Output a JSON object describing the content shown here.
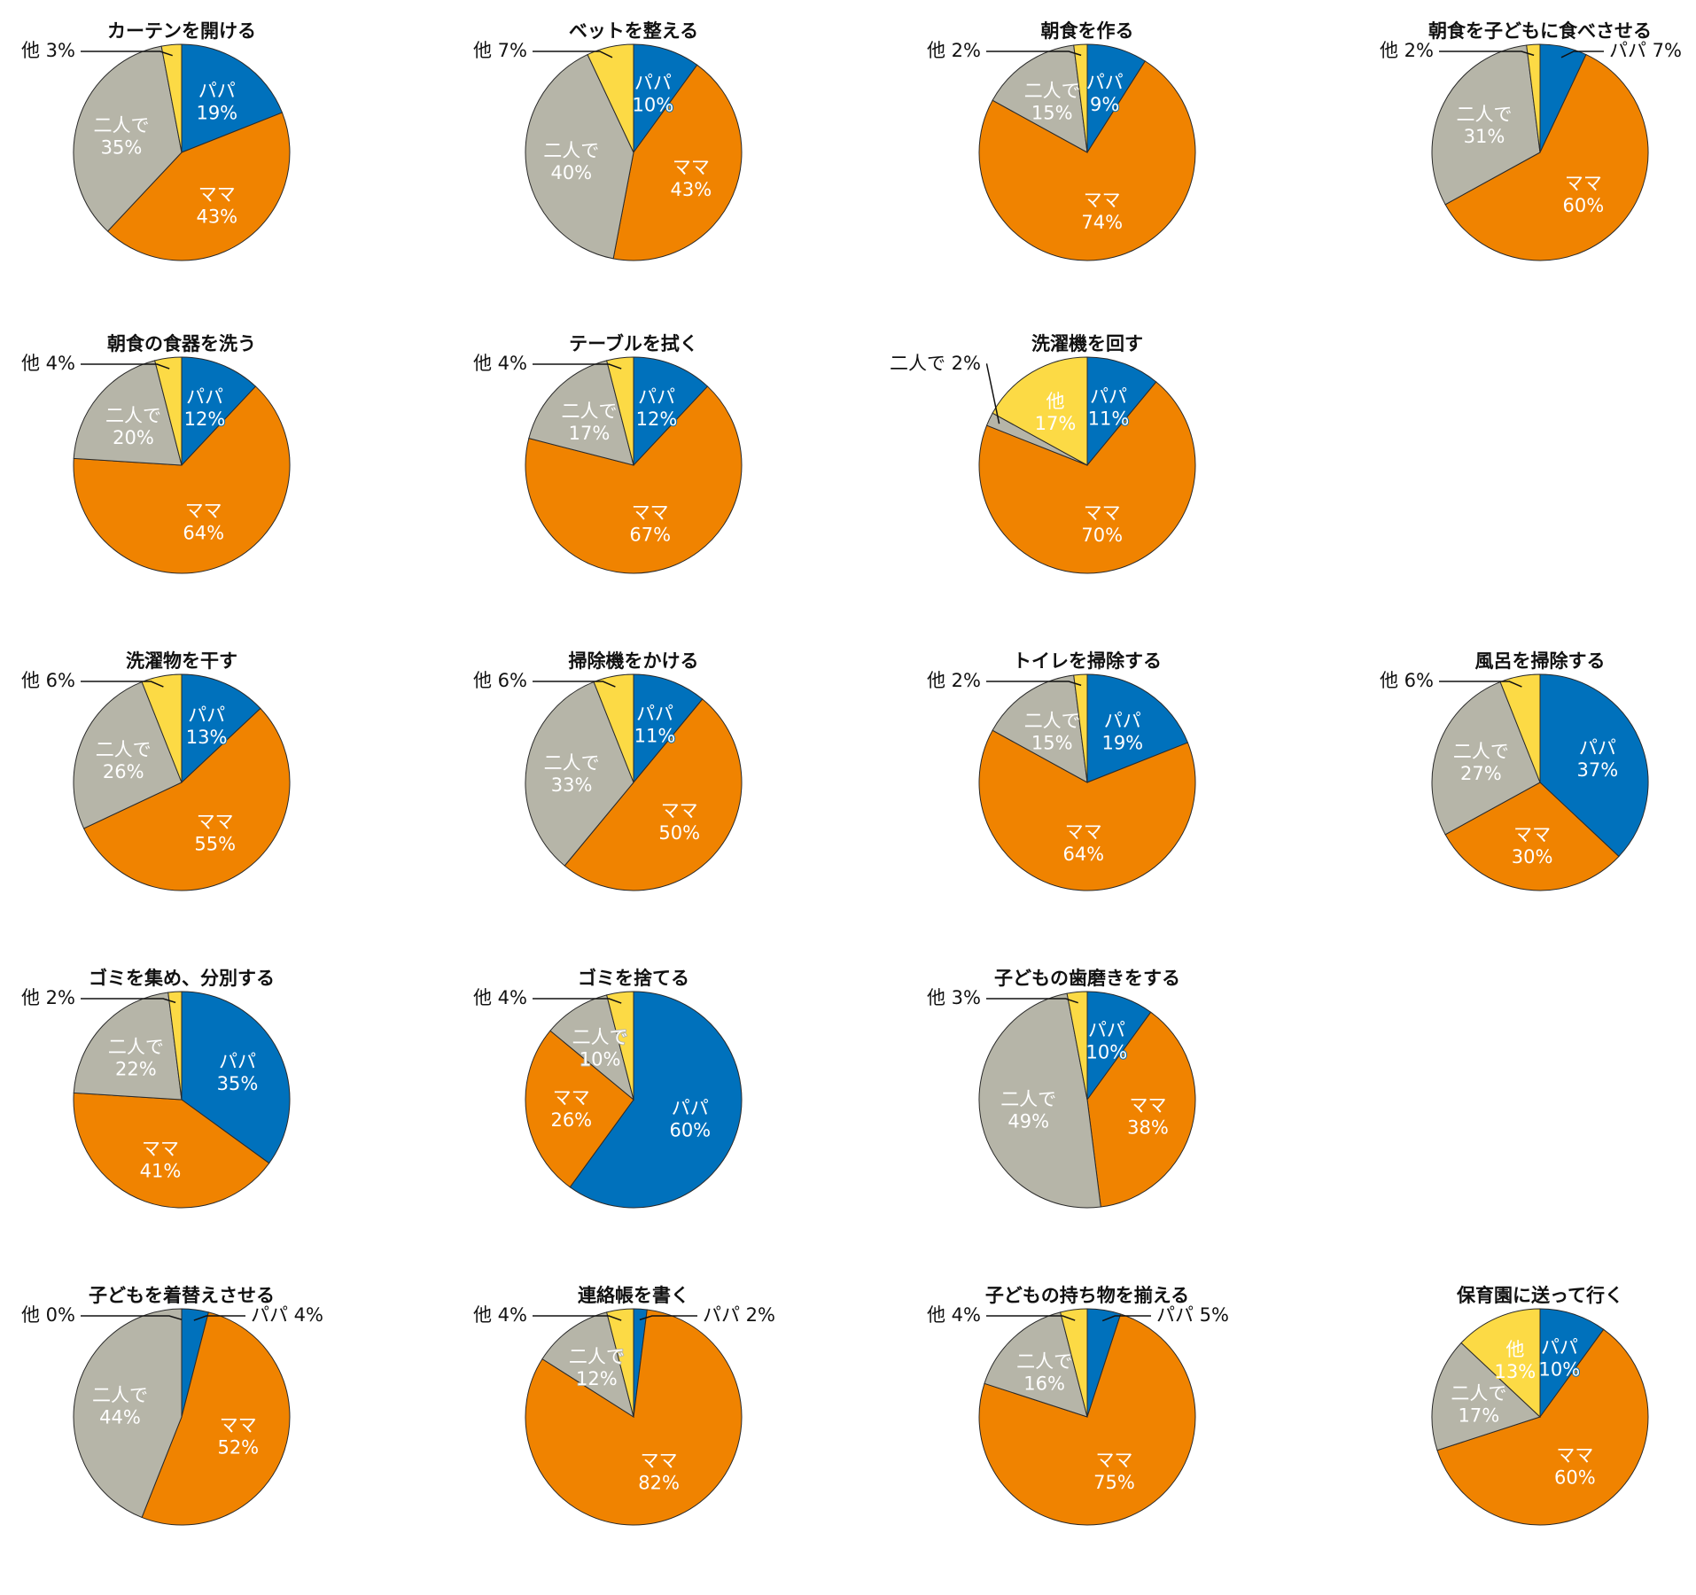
{
  "colors": {
    "papa": "#0071bc",
    "mama": "#f08300",
    "futari": "#b6b5a8",
    "other": "#fcda45"
  },
  "chart_data": [
    {
      "type": "pie",
      "title": "カーテンを開ける",
      "slices": [
        {
          "label": "パパ",
          "value": 19
        },
        {
          "label": "ママ",
          "value": 43
        },
        {
          "label": "二人で",
          "value": 35
        },
        {
          "label": "他",
          "value": 3
        }
      ]
    },
    {
      "type": "pie",
      "title": "ベットを整える",
      "slices": [
        {
          "label": "パパ",
          "value": 10
        },
        {
          "label": "ママ",
          "value": 43
        },
        {
          "label": "二人で",
          "value": 40
        },
        {
          "label": "他",
          "value": 7
        }
      ]
    },
    {
      "type": "pie",
      "title": "朝食を作る",
      "slices": [
        {
          "label": "パパ",
          "value": 9
        },
        {
          "label": "ママ",
          "value": 74
        },
        {
          "label": "二人で",
          "value": 15
        },
        {
          "label": "他",
          "value": 2
        }
      ]
    },
    {
      "type": "pie",
      "title": "朝食を子どもに食べさせる",
      "slices": [
        {
          "label": "パパ",
          "value": 7
        },
        {
          "label": "ママ",
          "value": 60
        },
        {
          "label": "二人で",
          "value": 31
        },
        {
          "label": "他",
          "value": 2
        }
      ]
    },
    {
      "type": "pie",
      "title": "朝食の食器を洗う",
      "slices": [
        {
          "label": "パパ",
          "value": 12
        },
        {
          "label": "ママ",
          "value": 64
        },
        {
          "label": "二人で",
          "value": 20
        },
        {
          "label": "他",
          "value": 4
        }
      ]
    },
    {
      "type": "pie",
      "title": "テーブルを拭く",
      "slices": [
        {
          "label": "パパ",
          "value": 12
        },
        {
          "label": "ママ",
          "value": 67
        },
        {
          "label": "二人で",
          "value": 17
        },
        {
          "label": "他",
          "value": 4
        }
      ]
    },
    {
      "type": "pie",
      "title": "洗濯機を回す",
      "slices": [
        {
          "label": "パパ",
          "value": 11
        },
        {
          "label": "ママ",
          "value": 70
        },
        {
          "label": "二人で",
          "value": 2
        },
        {
          "label": "他",
          "value": 17
        }
      ]
    },
    {
      "type": "pie",
      "title": "洗濯物を干す",
      "slices": [
        {
          "label": "パパ",
          "value": 13
        },
        {
          "label": "ママ",
          "value": 55
        },
        {
          "label": "二人で",
          "value": 26
        },
        {
          "label": "他",
          "value": 6
        }
      ]
    },
    {
      "type": "pie",
      "title": "掃除機をかける",
      "slices": [
        {
          "label": "パパ",
          "value": 11
        },
        {
          "label": "ママ",
          "value": 50
        },
        {
          "label": "二人で",
          "value": 33
        },
        {
          "label": "他",
          "value": 6
        }
      ]
    },
    {
      "type": "pie",
      "title": "トイレを掃除する",
      "slices": [
        {
          "label": "パパ",
          "value": 19
        },
        {
          "label": "ママ",
          "value": 64
        },
        {
          "label": "二人で",
          "value": 15
        },
        {
          "label": "他",
          "value": 2
        }
      ]
    },
    {
      "type": "pie",
      "title": "風呂を掃除する",
      "slices": [
        {
          "label": "パパ",
          "value": 37
        },
        {
          "label": "ママ",
          "value": 30
        },
        {
          "label": "二人で",
          "value": 27
        },
        {
          "label": "他",
          "value": 6
        }
      ]
    },
    {
      "type": "pie",
      "title": "ゴミを集め、分別する",
      "slices": [
        {
          "label": "パパ",
          "value": 35
        },
        {
          "label": "ママ",
          "value": 41
        },
        {
          "label": "二人で",
          "value": 22
        },
        {
          "label": "他",
          "value": 2
        }
      ]
    },
    {
      "type": "pie",
      "title": "ゴミを捨てる",
      "slices": [
        {
          "label": "パパ",
          "value": 60
        },
        {
          "label": "ママ",
          "value": 26
        },
        {
          "label": "二人で",
          "value": 10
        },
        {
          "label": "他",
          "value": 4
        }
      ]
    },
    {
      "type": "pie",
      "title": "子どもの歯磨きをする",
      "slices": [
        {
          "label": "パパ",
          "value": 10
        },
        {
          "label": "ママ",
          "value": 38
        },
        {
          "label": "二人で",
          "value": 49
        },
        {
          "label": "他",
          "value": 3
        }
      ]
    },
    {
      "type": "pie",
      "title": "子どもを着替えさせる",
      "slices": [
        {
          "label": "パパ",
          "value": 4
        },
        {
          "label": "ママ",
          "value": 52
        },
        {
          "label": "二人で",
          "value": 44
        },
        {
          "label": "他",
          "value": 0
        }
      ]
    },
    {
      "type": "pie",
      "title": "連絡帳を書く",
      "slices": [
        {
          "label": "パパ",
          "value": 2
        },
        {
          "label": "ママ",
          "value": 82
        },
        {
          "label": "二人で",
          "value": 12
        },
        {
          "label": "他",
          "value": 4
        }
      ]
    },
    {
      "type": "pie",
      "title": "子どもの持ち物を揃える",
      "slices": [
        {
          "label": "パパ",
          "value": 5
        },
        {
          "label": "ママ",
          "value": 75
        },
        {
          "label": "二人で",
          "value": 16
        },
        {
          "label": "他",
          "value": 4
        }
      ]
    },
    {
      "type": "pie",
      "title": "保育園に送って行く",
      "slices": [
        {
          "label": "パパ",
          "value": 10
        },
        {
          "label": "ママ",
          "value": 60
        },
        {
          "label": "二人で",
          "value": 17
        },
        {
          "label": "他",
          "value": 13
        }
      ]
    }
  ]
}
